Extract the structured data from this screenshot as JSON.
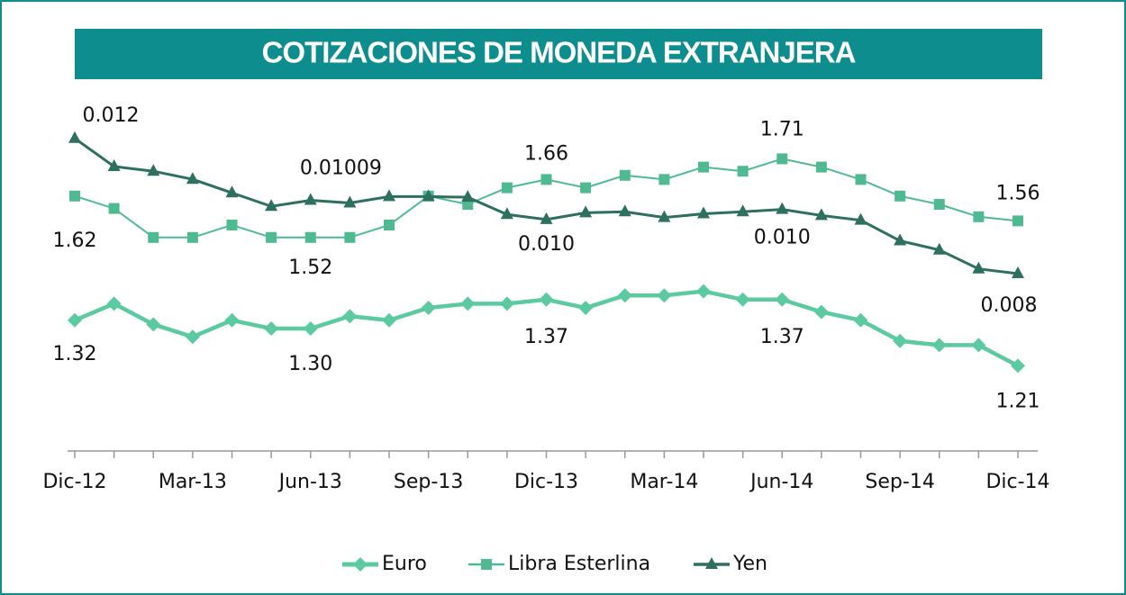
{
  "chart_data": {
    "type": "line",
    "title": "COTIZACIONES DE MONEDA EXTRANJERA",
    "categories": [
      "Dic-12",
      null,
      null,
      "Mar-13",
      null,
      null,
      "Jun-13",
      null,
      null,
      "Sep-13",
      null,
      null,
      "Dic-13",
      null,
      null,
      "Mar-14",
      null,
      null,
      "Jun-14",
      null,
      null,
      "Sep-14",
      null,
      null,
      "Dic-14"
    ],
    "ylim": [
      1.0,
      1.8
    ],
    "y2lim": [
      0.0027,
      0.0125
    ],
    "legend": "bottom",
    "series": [
      {
        "name": "Euro",
        "color": "#5ccaa0",
        "marker": "diamond",
        "values": [
          1.32,
          1.36,
          1.31,
          1.28,
          1.32,
          1.3,
          1.3,
          1.33,
          1.32,
          1.35,
          1.36,
          1.36,
          1.37,
          1.35,
          1.38,
          1.38,
          1.39,
          1.37,
          1.37,
          1.34,
          1.32,
          1.27,
          1.26,
          1.26,
          1.21
        ],
        "value_labels": [
          "1.32",
          null,
          null,
          null,
          null,
          null,
          "1.30",
          null,
          null,
          null,
          null,
          null,
          "1.37",
          null,
          null,
          null,
          null,
          null,
          "1.37",
          null,
          null,
          null,
          null,
          null,
          "1.21"
        ]
      },
      {
        "name": "Libra Esterlina",
        "color": "#4fba92",
        "marker": "square",
        "values": [
          1.62,
          1.59,
          1.52,
          1.52,
          1.55,
          1.52,
          1.52,
          1.52,
          1.55,
          1.62,
          1.6,
          1.64,
          1.66,
          1.64,
          1.67,
          1.66,
          1.69,
          1.68,
          1.71,
          1.69,
          1.66,
          1.62,
          1.6,
          1.57,
          1.56
        ],
        "value_labels": [
          "1.62",
          null,
          null,
          null,
          null,
          null,
          "1.52",
          null,
          null,
          null,
          null,
          null,
          "1.66",
          null,
          null,
          null,
          null,
          null,
          "1.71",
          null,
          null,
          null,
          null,
          null,
          "1.56"
        ]
      },
      {
        "name": "Yen",
        "color": "#2f6f60",
        "marker": "triangle",
        "axis": "y2",
        "values": [
          0.012,
          0.01117,
          0.01103,
          0.01079,
          0.01039,
          0.00999,
          0.01017,
          0.01009,
          0.01028,
          0.01028,
          0.01026,
          0.00975,
          0.0096,
          0.0098,
          0.00983,
          0.00966,
          0.00977,
          0.00983,
          0.0099,
          0.00972,
          0.00958,
          0.00897,
          0.0087,
          0.00814,
          0.008
        ],
        "value_labels": [
          "0.012",
          null,
          null,
          null,
          null,
          null,
          null,
          "0.01009",
          null,
          null,
          null,
          null,
          "0.010",
          null,
          null,
          null,
          null,
          null,
          "0.010",
          null,
          null,
          null,
          null,
          null,
          "0.008"
        ]
      }
    ]
  }
}
